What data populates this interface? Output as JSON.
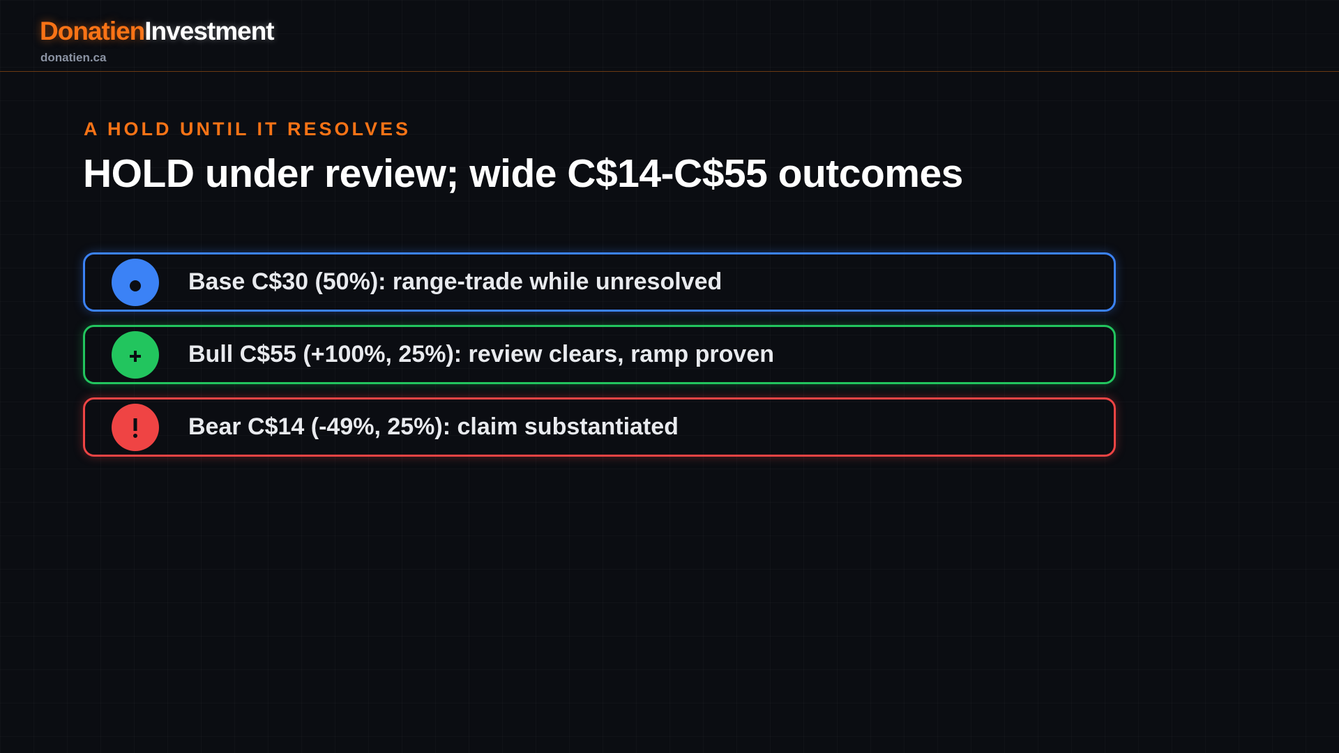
{
  "header": {
    "brand_primary": "Donatien",
    "brand_secondary": "Investment",
    "site": "donatien.ca"
  },
  "slide": {
    "kicker": "A HOLD UNTIL IT RESOLVES",
    "title": "HOLD under review; wide C$14-C$55 outcomes",
    "items": [
      {
        "text": "Base C$30 (50%): range-trade while unresolved"
      },
      {
        "text": "Bull C$55 (+100%, 25%): review clears, ramp proven"
      },
      {
        "text": "Bear C$14 (-49%, 25%): claim substantiated"
      }
    ]
  }
}
